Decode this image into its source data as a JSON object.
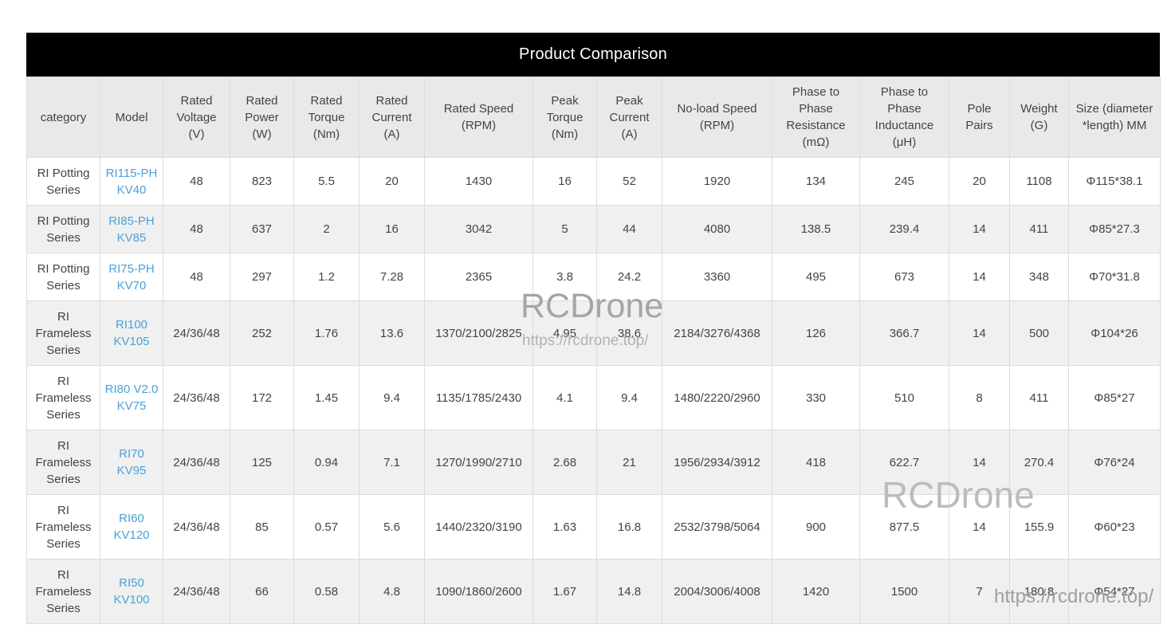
{
  "title": "Product Comparison",
  "watermarks": {
    "brand": "RCDrone",
    "url": "https://rcdrone.top/"
  },
  "colors": {
    "link_blue": "#4aa1d9",
    "title_bar_bg": "#000000",
    "title_text": "#ffffff",
    "header_bg": "#e9e9e9",
    "row_stripe": "#f0f0f0",
    "cell_text": "#444444",
    "watermark_gray": "#a8a8a8"
  },
  "table": {
    "columns": [
      {
        "id": "category",
        "label": "category"
      },
      {
        "id": "model",
        "label": "Model"
      },
      {
        "id": "rated-voltage",
        "label": "Rated Voltage (V)"
      },
      {
        "id": "rated-power",
        "label": "Rated Power (W)"
      },
      {
        "id": "rated-torque",
        "label": "Rated Torque (Nm)"
      },
      {
        "id": "rated-current",
        "label": "Rated Current (A)"
      },
      {
        "id": "rated-speed",
        "label": "Rated Speed (RPM)"
      },
      {
        "id": "peak-torque",
        "label": "Peak Torque (Nm)"
      },
      {
        "id": "peak-current",
        "label": "Peak Current (A)"
      },
      {
        "id": "noload-speed",
        "label": "No-load Speed (RPM)"
      },
      {
        "id": "phase-resistance",
        "label": "Phase to Phase Resistance (mΩ)"
      },
      {
        "id": "phase-inductance",
        "label": "Phase to Phase Inductance (μH)"
      },
      {
        "id": "pole-pairs",
        "label": "Pole Pairs"
      },
      {
        "id": "weight",
        "label": "Weight (G)"
      },
      {
        "id": "size",
        "label": "Size (diameter *length) MM"
      }
    ],
    "rows": [
      {
        "cells": [
          "RI Potting Series",
          "RI115-PH KV40",
          "48",
          "823",
          "5.5",
          "20",
          "1430",
          "16",
          "52",
          "1920",
          "134",
          "245",
          "20",
          "1108",
          "Φ115*38.1"
        ]
      },
      {
        "cells": [
          "RI Potting Series",
          "RI85-PH KV85",
          "48",
          "637",
          "2",
          "16",
          "3042",
          "5",
          "44",
          "4080",
          "138.5",
          "239.4",
          "14",
          "411",
          "Φ85*27.3"
        ]
      },
      {
        "cells": [
          "RI Potting Series",
          "RI75-PH KV70",
          "48",
          "297",
          "1.2",
          "7.28",
          "2365",
          "3.8",
          "24.2",
          "3360",
          "495",
          "673",
          "14",
          "348",
          "Φ70*31.8"
        ]
      },
      {
        "cells": [
          "RI Frameless Series",
          "RI100 KV105",
          "24/36/48",
          "252",
          "1.76",
          "13.6",
          "1370/2100/2825",
          "4.95",
          "38.6",
          "2184/3276/4368",
          "126",
          "366.7",
          "14",
          "500",
          "Φ104*26"
        ]
      },
      {
        "cells": [
          "RI Frameless Series",
          "RI80 V2.0 KV75",
          "24/36/48",
          "172",
          "1.45",
          "9.4",
          "1135/1785/2430",
          "4.1",
          "9.4",
          "1480/2220/2960",
          "330",
          "510",
          "8",
          "411",
          "Φ85*27"
        ]
      },
      {
        "cells": [
          "RI Frameless Series",
          "RI70 KV95",
          "24/36/48",
          "125",
          "0.94",
          "7.1",
          "1270/1990/2710",
          "2.68",
          "21",
          "1956/2934/3912",
          "418",
          "622.7",
          "14",
          "270.4",
          "Φ76*24"
        ]
      },
      {
        "cells": [
          "RI Frameless Series",
          "RI60 KV120",
          "24/36/48",
          "85",
          "0.57",
          "5.6",
          "1440/2320/3190",
          "1.63",
          "16.8",
          "2532/3798/5064",
          "900",
          "877.5",
          "14",
          "155.9",
          "Φ60*23"
        ]
      },
      {
        "cells": [
          "RI Frameless Series",
          "RI50 KV100",
          "24/36/48",
          "66",
          "0.58",
          "4.8",
          "1090/1860/2600",
          "1.67",
          "14.8",
          "2004/3006/4008",
          "1420",
          "1500",
          "7",
          "180.8",
          "Φ54*27"
        ]
      }
    ]
  }
}
